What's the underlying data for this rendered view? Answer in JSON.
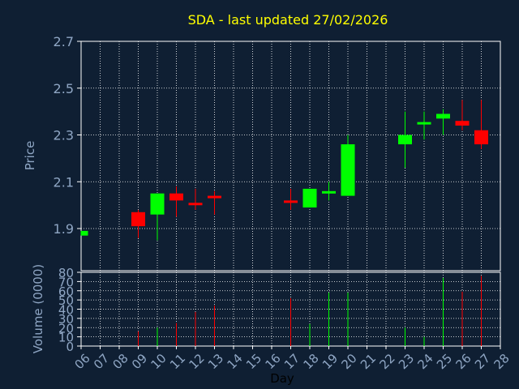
{
  "theme": {
    "background": "#0f1f33",
    "title_color": "#ffff00",
    "axis_text_color": "#8fa6c4",
    "frame_color": "#ffffff",
    "grid_color": "#ffffff",
    "up_color": "#00ff00",
    "down_color": "#ff0000",
    "xlabel_color": "#000000"
  },
  "chart_data": {
    "type": "candlestick",
    "title": "SDA - last updated 27/02/2026",
    "xlabel": "Day",
    "price_ylabel": "Price",
    "volume_ylabel": "Volume (0000)",
    "x_ticks": [
      "06",
      "07",
      "08",
      "09",
      "10",
      "11",
      "12",
      "13",
      "14",
      "15",
      "16",
      "17",
      "18",
      "19",
      "20",
      "21",
      "22",
      "23",
      "24",
      "25",
      "26",
      "27",
      "28"
    ],
    "price_ylim": [
      1.72,
      2.7
    ],
    "price_ticks": [
      "1.9",
      "2.1",
      "2.3",
      "2.5",
      "2.7"
    ],
    "price_tick_values": [
      1.9,
      2.1,
      2.3,
      2.5,
      2.7
    ],
    "volume_ylim": [
      0,
      80
    ],
    "volume_ticks": [
      "0",
      "10",
      "20",
      "30",
      "40",
      "50",
      "60",
      "70",
      "80"
    ],
    "volume_tick_values": [
      0,
      10,
      20,
      30,
      40,
      50,
      60,
      70,
      80
    ],
    "grid": true,
    "candles": [
      {
        "day": "06",
        "open": 1.87,
        "close": 1.89,
        "high": 1.89,
        "low": 1.87,
        "volume": 0
      },
      {
        "day": "09",
        "open": 1.97,
        "close": 1.91,
        "high": 1.98,
        "low": 1.86,
        "volume": 16
      },
      {
        "day": "10",
        "open": 1.96,
        "close": 2.05,
        "high": 2.05,
        "low": 1.85,
        "volume": 20
      },
      {
        "day": "11",
        "open": 2.05,
        "close": 2.02,
        "high": 2.08,
        "low": 1.95,
        "volume": 25
      },
      {
        "day": "12",
        "open": 2.01,
        "close": 2.0,
        "high": 2.07,
        "low": 1.98,
        "volume": 37
      },
      {
        "day": "13",
        "open": 2.04,
        "close": 2.03,
        "high": 2.06,
        "low": 1.96,
        "volume": 44
      },
      {
        "day": "17",
        "open": 2.02,
        "close": 2.01,
        "high": 2.07,
        "low": 1.98,
        "volume": 52
      },
      {
        "day": "18",
        "open": 1.99,
        "close": 2.07,
        "high": 2.07,
        "low": 1.99,
        "volume": 24
      },
      {
        "day": "19",
        "open": 2.05,
        "close": 2.06,
        "high": 2.1,
        "low": 2.02,
        "volume": 58
      },
      {
        "day": "20",
        "open": 2.04,
        "close": 2.26,
        "high": 2.3,
        "low": 2.04,
        "volume": 58
      },
      {
        "day": "23",
        "open": 2.26,
        "close": 2.3,
        "high": 2.4,
        "low": 2.16,
        "volume": 20
      },
      {
        "day": "24",
        "open": 2.35,
        "close": 2.355,
        "high": 2.4,
        "low": 2.28,
        "volume": 10
      },
      {
        "day": "25",
        "open": 2.37,
        "close": 2.39,
        "high": 2.41,
        "low": 2.3,
        "volume": 74
      },
      {
        "day": "26",
        "open": 2.36,
        "close": 2.34,
        "high": 2.45,
        "low": 2.32,
        "volume": 59
      },
      {
        "day": "27",
        "open": 2.32,
        "close": 2.26,
        "high": 2.45,
        "low": 2.24,
        "volume": 76
      }
    ]
  }
}
